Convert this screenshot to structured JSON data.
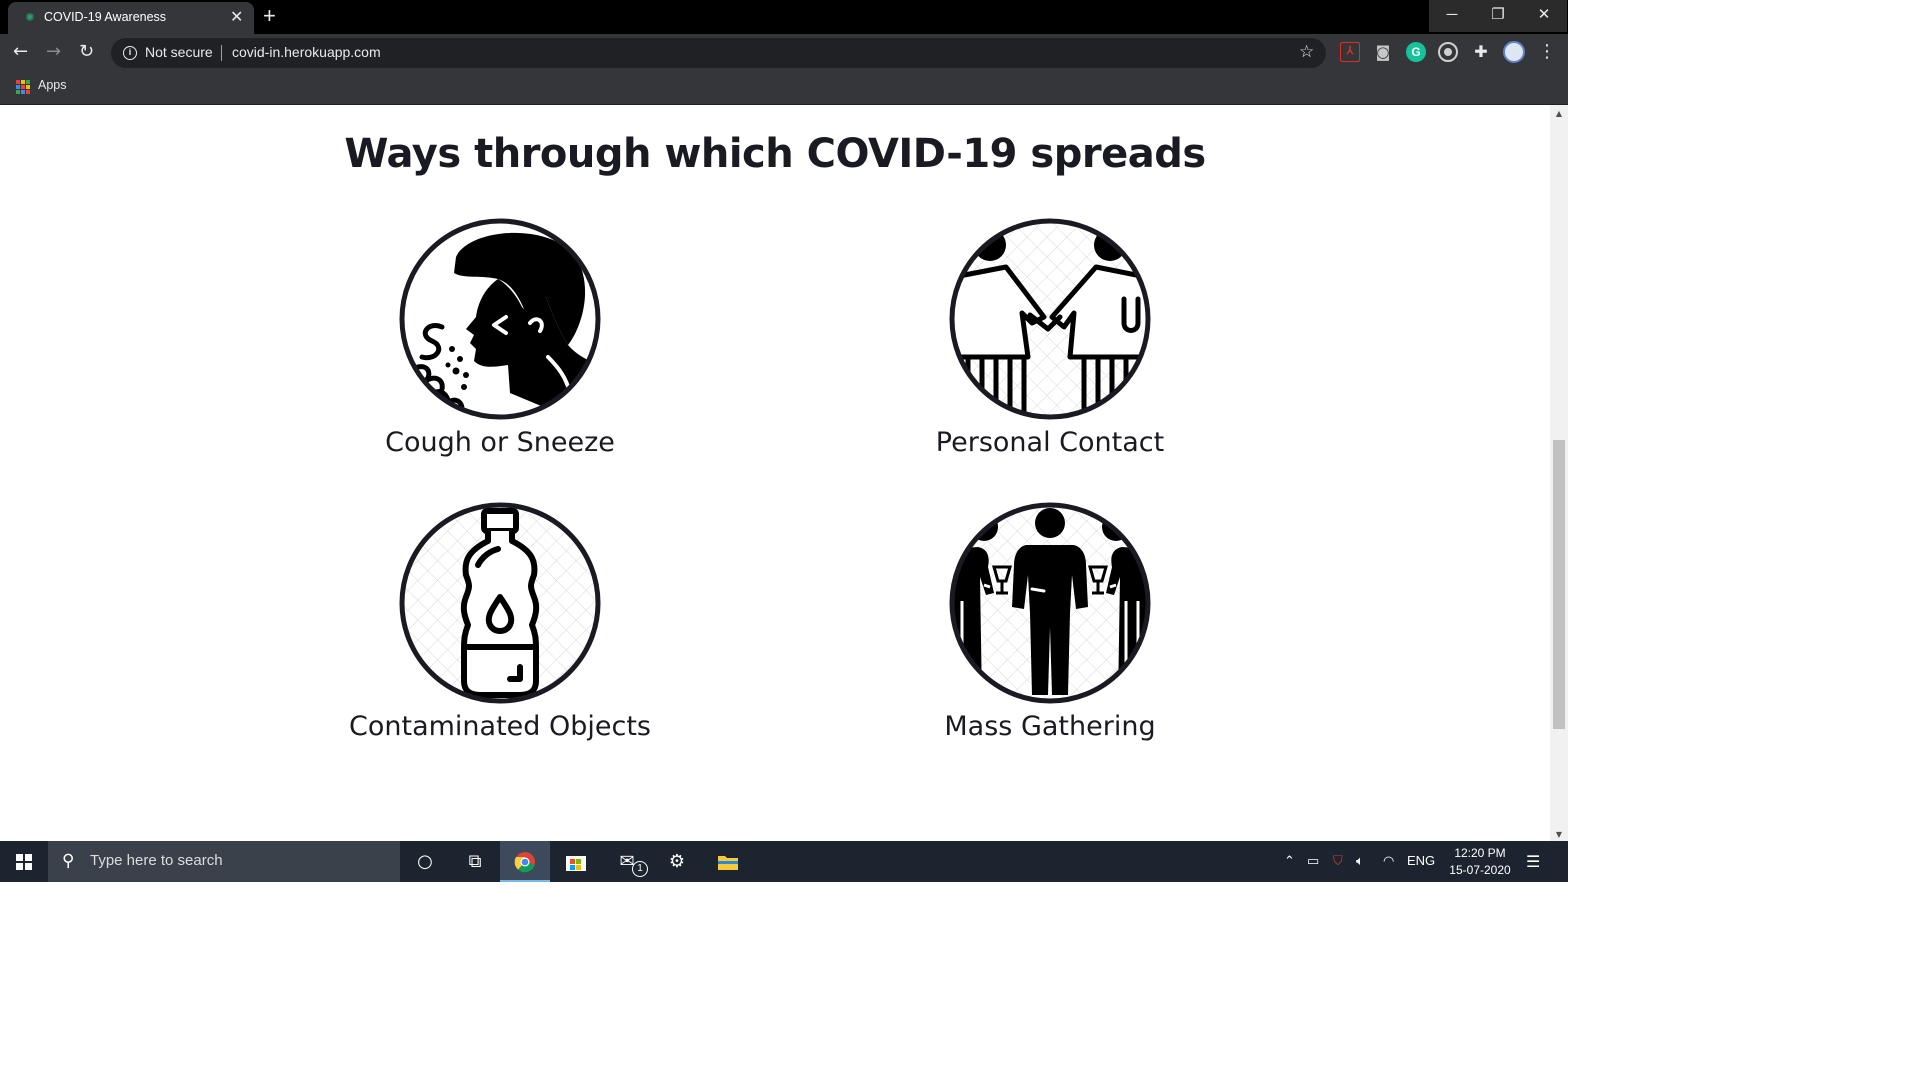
{
  "browser": {
    "tab_title": "COVID-19 Awareness",
    "security_label": "Not secure",
    "url": "covid-in.herokuapp.com",
    "bookmarks_apps_label": "Apps",
    "extensions": [
      "acrobat-icon",
      "camera-icon",
      "grammarly-icon",
      "circle-ext-icon",
      "puzzle-icon",
      "profile-avatar",
      "menu-icon"
    ]
  },
  "page": {
    "heading": "Ways through which COVID-19 spreads",
    "cards": [
      {
        "label": "Cough or Sneeze",
        "icon": "cough-sneeze-icon"
      },
      {
        "label": "Personal Contact",
        "icon": "personal-contact-icon"
      },
      {
        "label": "Contaminated Objects",
        "icon": "contaminated-bottle-icon"
      },
      {
        "label": "Mass Gathering",
        "icon": "mass-gathering-icon"
      }
    ]
  },
  "taskbar": {
    "search_placeholder": "Type here to search",
    "mail_badge": "1",
    "language": "ENG",
    "time": "12:20 PM",
    "date": "15-07-2020"
  },
  "colors": {
    "tabbar": "#000000",
    "chrome_toolbar": "#35363a",
    "omnibox": "#202124",
    "heading_text": "#1a1a22",
    "taskbar": "#1c2430",
    "grammarly": "#15c39a"
  }
}
